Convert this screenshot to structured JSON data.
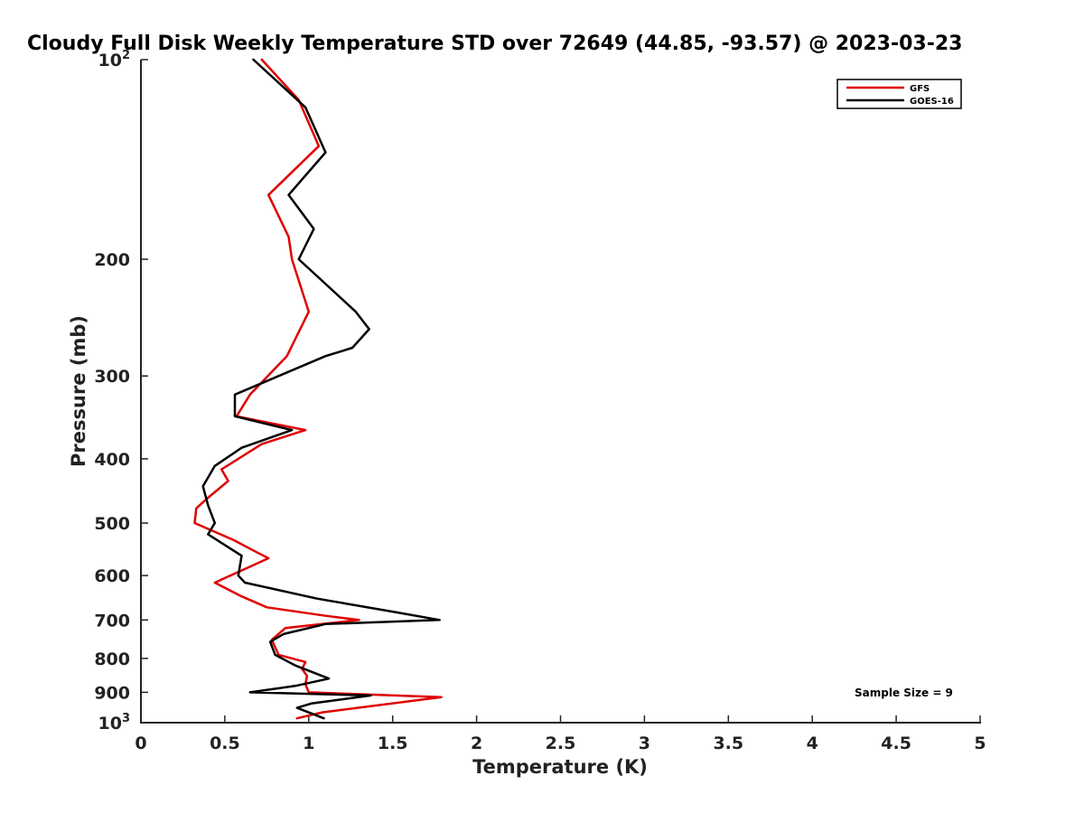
{
  "chart_data": {
    "type": "line",
    "title": "Cloudy Full Disk Weekly Temperature STD over 72649 (44.85, -93.57) @ 2023-03-23",
    "xlabel": "Temperature (K)",
    "ylabel": "Pressure (mb)",
    "xlim": [
      0,
      5
    ],
    "ylim": [
      100,
      1000
    ],
    "y_scale": "log",
    "y_reversed": true,
    "grid": false,
    "legend_position": "top-right",
    "x_ticks": [
      "0",
      "0.5",
      "1",
      "1.5",
      "2",
      "2.5",
      "3",
      "3.5",
      "4",
      "4.5",
      "5"
    ],
    "y_ticks": [
      {
        "value": 100,
        "base": "10",
        "exp": "2"
      },
      {
        "value": 200,
        "label": "200"
      },
      {
        "value": 300,
        "label": "300"
      },
      {
        "value": 400,
        "label": "400"
      },
      {
        "value": 500,
        "label": "500"
      },
      {
        "value": 600,
        "label": "600"
      },
      {
        "value": 700,
        "label": "700"
      },
      {
        "value": 800,
        "label": "800"
      },
      {
        "value": 900,
        "label": "900"
      },
      {
        "value": 1000,
        "base": "10",
        "exp": "3"
      }
    ],
    "annotation": "Sample Size = 9",
    "series": [
      {
        "name": "GFS",
        "color": "#e00000",
        "points": [
          {
            "x": 0.72,
            "y": 100
          },
          {
            "x": 0.94,
            "y": 115
          },
          {
            "x": 1.06,
            "y": 135
          },
          {
            "x": 0.76,
            "y": 160
          },
          {
            "x": 0.88,
            "y": 185
          },
          {
            "x": 0.9,
            "y": 200
          },
          {
            "x": 1.0,
            "y": 240
          },
          {
            "x": 0.87,
            "y": 280
          },
          {
            "x": 0.65,
            "y": 320
          },
          {
            "x": 0.57,
            "y": 345
          },
          {
            "x": 0.98,
            "y": 362
          },
          {
            "x": 0.72,
            "y": 380
          },
          {
            "x": 0.48,
            "y": 415
          },
          {
            "x": 0.52,
            "y": 432
          },
          {
            "x": 0.39,
            "y": 460
          },
          {
            "x": 0.33,
            "y": 475
          },
          {
            "x": 0.32,
            "y": 500
          },
          {
            "x": 0.55,
            "y": 530
          },
          {
            "x": 0.7,
            "y": 555
          },
          {
            "x": 0.76,
            "y": 565
          },
          {
            "x": 0.44,
            "y": 615
          },
          {
            "x": 0.6,
            "y": 645
          },
          {
            "x": 0.75,
            "y": 670
          },
          {
            "x": 1.1,
            "y": 690
          },
          {
            "x": 1.3,
            "y": 700
          },
          {
            "x": 0.86,
            "y": 720
          },
          {
            "x": 0.78,
            "y": 750
          },
          {
            "x": 0.82,
            "y": 790
          },
          {
            "x": 0.98,
            "y": 810
          },
          {
            "x": 0.96,
            "y": 830
          },
          {
            "x": 0.99,
            "y": 850
          },
          {
            "x": 0.98,
            "y": 875
          },
          {
            "x": 1.0,
            "y": 900
          },
          {
            "x": 1.79,
            "y": 915
          },
          {
            "x": 1.08,
            "y": 965
          },
          {
            "x": 0.93,
            "y": 985
          }
        ]
      },
      {
        "name": "GOES-16",
        "color": "#000000",
        "points": [
          {
            "x": 0.67,
            "y": 100
          },
          {
            "x": 0.98,
            "y": 118
          },
          {
            "x": 1.1,
            "y": 138
          },
          {
            "x": 0.88,
            "y": 160
          },
          {
            "x": 1.03,
            "y": 180
          },
          {
            "x": 0.94,
            "y": 200
          },
          {
            "x": 1.28,
            "y": 240
          },
          {
            "x": 1.36,
            "y": 255
          },
          {
            "x": 1.26,
            "y": 272
          },
          {
            "x": 1.1,
            "y": 280
          },
          {
            "x": 0.56,
            "y": 320
          },
          {
            "x": 0.56,
            "y": 345
          },
          {
            "x": 0.9,
            "y": 362
          },
          {
            "x": 0.6,
            "y": 385
          },
          {
            "x": 0.44,
            "y": 410
          },
          {
            "x": 0.37,
            "y": 440
          },
          {
            "x": 0.4,
            "y": 470
          },
          {
            "x": 0.44,
            "y": 500
          },
          {
            "x": 0.4,
            "y": 520
          },
          {
            "x": 0.6,
            "y": 560
          },
          {
            "x": 0.58,
            "y": 600
          },
          {
            "x": 0.62,
            "y": 615
          },
          {
            "x": 1.05,
            "y": 650
          },
          {
            "x": 1.5,
            "y": 680
          },
          {
            "x": 1.78,
            "y": 700
          },
          {
            "x": 1.1,
            "y": 710
          },
          {
            "x": 0.85,
            "y": 735
          },
          {
            "x": 0.77,
            "y": 755
          },
          {
            "x": 0.8,
            "y": 790
          },
          {
            "x": 0.92,
            "y": 820
          },
          {
            "x": 1.12,
            "y": 858
          },
          {
            "x": 0.92,
            "y": 880
          },
          {
            "x": 0.65,
            "y": 900
          },
          {
            "x": 1.37,
            "y": 910
          },
          {
            "x": 1.02,
            "y": 935
          },
          {
            "x": 0.93,
            "y": 950
          },
          {
            "x": 1.09,
            "y": 985
          }
        ]
      }
    ]
  }
}
